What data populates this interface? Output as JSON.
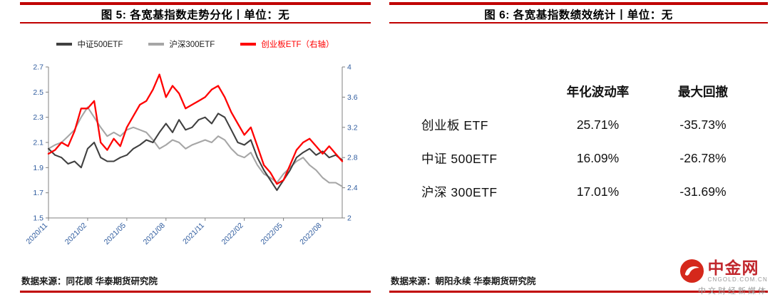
{
  "colors": {
    "rule_red": "#c00000",
    "brand_red": "#d5281b",
    "brand_text_red": "#c1272d",
    "axis_tick_blue": "#2e5b9e"
  },
  "left_panel": {
    "title": "图 5: 各宽基指数走势分化丨单位：无",
    "source": "数据来源：同花顺 华泰期货研究院"
  },
  "right_panel": {
    "title": "图 6: 各宽基指数绩效统计丨单位：无",
    "source": "数据来源：朝阳永续 华泰期货研究院",
    "table": {
      "headers": [
        "年化波动率",
        "最大回撤"
      ],
      "rows": [
        {
          "name": "创业板 ETF",
          "volatility": "25.71%",
          "drawdown": "-35.73%"
        },
        {
          "name": "中证 500ETF",
          "volatility": "16.09%",
          "drawdown": "-26.78%"
        },
        {
          "name": "沪深 300ETF",
          "volatility": "17.01%",
          "drawdown": "-31.69%"
        }
      ]
    }
  },
  "watermark": {
    "name": "中金网",
    "domain": "CNGOLD.COM.CN",
    "tagline": "中文财经新媒体"
  },
  "chart_data": {
    "type": "line",
    "title": "各宽基指数走势分化",
    "grid": false,
    "legend_position": "top",
    "axis_color": "#808080",
    "tick_color": "#2e5b9e",
    "x_months": [
      "2020/11",
      "2020/12",
      "2021/01",
      "2021/02",
      "2021/03",
      "2021/04",
      "2021/05",
      "2021/06",
      "2021/07",
      "2021/08",
      "2021/09",
      "2021/10",
      "2021/11",
      "2021/12",
      "2022/01",
      "2022/02",
      "2022/03",
      "2022/04",
      "2022/05",
      "2022/06",
      "2022/07",
      "2022/08",
      "2022/09"
    ],
    "points_per_month": 2,
    "x_tick_labels": [
      "2020/11",
      "2021/02",
      "2021/05",
      "2021/08",
      "2021/11",
      "2022/02",
      "2022/05",
      "2022/08"
    ],
    "x_tick_indices": [
      0,
      6,
      12,
      18,
      24,
      30,
      36,
      42
    ],
    "left_axis": {
      "min": 1.5,
      "max": 2.7,
      "ticks": [
        "1.5",
        "1.7",
        "1.9",
        "2.1",
        "2.3",
        "2.5",
        "2.7"
      ]
    },
    "right_axis": {
      "min": 2,
      "max": 4,
      "ticks": [
        "2",
        "2.4",
        "2.8",
        "3.2",
        "3.6",
        "4"
      ]
    },
    "series": [
      {
        "name": "中证500ETF",
        "axis": "left",
        "color": "#404040",
        "label_color": "#1a1a1a",
        "width": 2.1,
        "z": 2,
        "values": [
          2.05,
          2.0,
          1.98,
          1.93,
          1.95,
          1.9,
          2.05,
          2.1,
          1.98,
          1.95,
          1.95,
          1.98,
          2.0,
          2.05,
          2.08,
          2.12,
          2.1,
          2.18,
          2.25,
          2.18,
          2.28,
          2.2,
          2.22,
          2.28,
          2.3,
          2.25,
          2.33,
          2.3,
          2.2,
          2.1,
          2.08,
          2.12,
          1.98,
          1.88,
          1.8,
          1.72,
          1.8,
          1.88,
          1.98,
          2.02,
          2.05,
          2.0,
          2.03,
          1.98,
          2.0,
          1.96
        ]
      },
      {
        "name": "沪深300ETF",
        "axis": "left",
        "color": "#a6a6a6",
        "label_color": "#1a1a1a",
        "width": 2.1,
        "z": 1,
        "values": [
          2.05,
          2.08,
          2.1,
          2.15,
          2.2,
          2.3,
          2.38,
          2.3,
          2.22,
          2.15,
          2.18,
          2.15,
          2.2,
          2.22,
          2.2,
          2.18,
          2.12,
          2.05,
          2.08,
          2.12,
          2.1,
          2.05,
          2.08,
          2.1,
          2.12,
          2.1,
          2.15,
          2.12,
          2.05,
          2.0,
          1.98,
          2.02,
          1.92,
          1.85,
          1.82,
          1.78,
          1.85,
          1.9,
          1.95,
          1.98,
          1.92,
          1.88,
          1.82,
          1.78,
          1.78,
          1.75
        ]
      },
      {
        "name": "创业板ETF（右轴）",
        "axis": "right",
        "color": "#ff0000",
        "label_color": "#ff0000",
        "width": 2.3,
        "z": 3,
        "values": [
          2.85,
          2.9,
          3.0,
          2.95,
          3.15,
          3.45,
          3.45,
          3.55,
          3.0,
          2.9,
          3.05,
          2.95,
          3.2,
          3.35,
          3.5,
          3.55,
          3.7,
          3.9,
          3.6,
          3.75,
          3.65,
          3.45,
          3.5,
          3.55,
          3.6,
          3.7,
          3.75,
          3.6,
          3.4,
          3.25,
          3.1,
          3.2,
          2.95,
          2.7,
          2.6,
          2.45,
          2.5,
          2.7,
          2.9,
          3.0,
          3.05,
          2.95,
          2.85,
          2.95,
          2.85,
          2.75
        ]
      }
    ]
  }
}
